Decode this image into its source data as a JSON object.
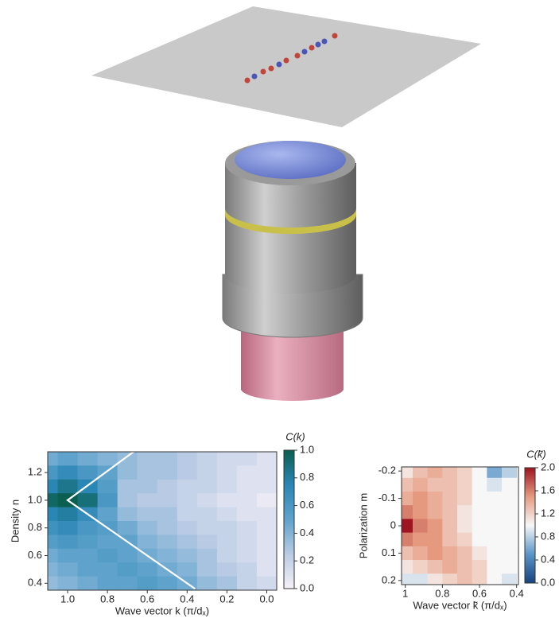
{
  "chart_data": [
    {
      "type": "heatmap",
      "x_label": "Wave vector k (π/dₓ)",
      "y_label": "Density n",
      "colorbar_label": "C(k)",
      "x": [
        1.1,
        1.0,
        0.9,
        0.8,
        0.7,
        0.6,
        0.5,
        0.4,
        0.3,
        0.2,
        0.1,
        0.0
      ],
      "y": [
        1.3,
        1.2,
        1.1,
        1.0,
        0.9,
        0.8,
        0.7,
        0.6,
        0.5,
        0.4
      ],
      "z": [
        [
          0.45,
          0.5,
          0.45,
          0.4,
          0.35,
          0.3,
          0.3,
          0.25,
          0.2,
          0.15,
          0.15,
          0.1
        ],
        [
          0.6,
          0.7,
          0.6,
          0.5,
          0.35,
          0.3,
          0.3,
          0.25,
          0.2,
          0.15,
          0.1,
          0.1
        ],
        [
          0.75,
          0.85,
          0.75,
          0.55,
          0.3,
          0.3,
          0.25,
          0.2,
          0.2,
          0.15,
          0.1,
          0.1
        ],
        [
          0.95,
          1.0,
          0.9,
          0.6,
          0.3,
          0.25,
          0.25,
          0.2,
          0.15,
          0.1,
          0.1,
          0.05
        ],
        [
          0.75,
          0.8,
          0.7,
          0.5,
          0.35,
          0.3,
          0.3,
          0.2,
          0.2,
          0.15,
          0.1,
          0.1
        ],
        [
          0.65,
          0.7,
          0.6,
          0.55,
          0.45,
          0.35,
          0.3,
          0.25,
          0.2,
          0.2,
          0.15,
          0.1
        ],
        [
          0.55,
          0.6,
          0.55,
          0.5,
          0.5,
          0.4,
          0.35,
          0.3,
          0.25,
          0.2,
          0.15,
          0.1
        ],
        [
          0.45,
          0.5,
          0.5,
          0.55,
          0.5,
          0.45,
          0.4,
          0.35,
          0.3,
          0.2,
          0.15,
          0.1
        ],
        [
          0.4,
          0.45,
          0.5,
          0.5,
          0.55,
          0.5,
          0.45,
          0.4,
          0.3,
          0.25,
          0.2,
          0.1
        ],
        [
          0.35,
          0.4,
          0.45,
          0.5,
          0.5,
          0.55,
          0.5,
          0.45,
          0.35,
          0.3,
          0.2,
          0.15
        ]
      ],
      "xlim": [
        1.1,
        -0.05
      ],
      "ylim": [
        0.35,
        1.35
      ],
      "xticks": [
        {
          "value": 1,
          "label": "1.0"
        },
        0.8,
        0.6,
        0.4,
        0.2,
        {
          "value": 0,
          "label": "0.0"
        }
      ],
      "yticks": [
        0.4,
        0.6,
        0.8,
        {
          "value": 1,
          "label": "1.0"
        },
        1.2
      ],
      "clim": [
        0,
        1
      ],
      "cticks": [
        {
          "value": 0,
          "label": "0.0"
        },
        0.2,
        0.4,
        0.6,
        0.8,
        {
          "value": 1,
          "label": "1.0"
        }
      ],
      "colors": [
        "#f6f1f8",
        "#b9cbe4",
        "#5fa3cc",
        "#2a86b5",
        "#0b5f50"
      ],
      "lines": [
        {
          "color": "#ffffff",
          "x": [
            0.65,
            1.0,
            0.36
          ],
          "y": [
            1.37,
            1.0,
            0.36
          ]
        }
      ]
    },
    {
      "type": "heatmap",
      "x_label": "Wave vector k̃ (π/dₓ)",
      "y_label": "Polarization m",
      "colorbar_label": "C(k̃)",
      "x": [
        1.0,
        0.92,
        0.84,
        0.76,
        0.68,
        0.6,
        0.52,
        0.44
      ],
      "y": [
        -0.2,
        -0.15,
        -0.1,
        -0.05,
        0,
        0.05,
        0.1,
        0.15,
        0.2
      ],
      "z": [
        [
          1.1,
          1.3,
          1.4,
          1.3,
          1.2,
          1.0,
          0.6,
          0.8
        ],
        [
          1.3,
          1.4,
          1.3,
          1.3,
          1.2,
          1.0,
          0.9,
          1.0
        ],
        [
          1.4,
          1.5,
          1.4,
          1.3,
          1.2,
          1.0,
          1.0,
          1.0
        ],
        [
          1.6,
          1.5,
          1.4,
          1.3,
          1.1,
          1.0,
          1.0,
          1.0
        ],
        [
          2.0,
          1.6,
          1.5,
          1.3,
          1.1,
          1.0,
          1.0,
          1.0
        ],
        [
          1.6,
          1.5,
          1.5,
          1.3,
          1.2,
          1.0,
          1.0,
          1.0
        ],
        [
          1.3,
          1.4,
          1.5,
          1.4,
          1.3,
          1.1,
          1.0,
          1.0
        ],
        [
          1.1,
          1.2,
          1.3,
          1.4,
          1.3,
          1.2,
          1.0,
          1.0
        ],
        [
          0.9,
          0.9,
          1.1,
          1.2,
          1.3,
          1.2,
          1.0,
          0.9
        ]
      ],
      "xlim": [
        1.02,
        0.39
      ],
      "ylim": [
        0.215,
        -0.215
      ],
      "xticks": [
        1,
        0.8,
        0.6,
        0.4
      ],
      "yticks": [
        -0.2,
        -0.1,
        0,
        0.1,
        0.2
      ],
      "clim": [
        0,
        2
      ],
      "cticks": [
        {
          "value": 0,
          "label": "0.0"
        },
        0.4,
        0.8,
        1.2,
        1.6,
        {
          "value": 2,
          "label": "2.0"
        }
      ],
      "colors": [
        "#15437f",
        "#5b95c8",
        "#f7f7f7",
        "#e59a80",
        "#9e1420"
      ]
    }
  ]
}
